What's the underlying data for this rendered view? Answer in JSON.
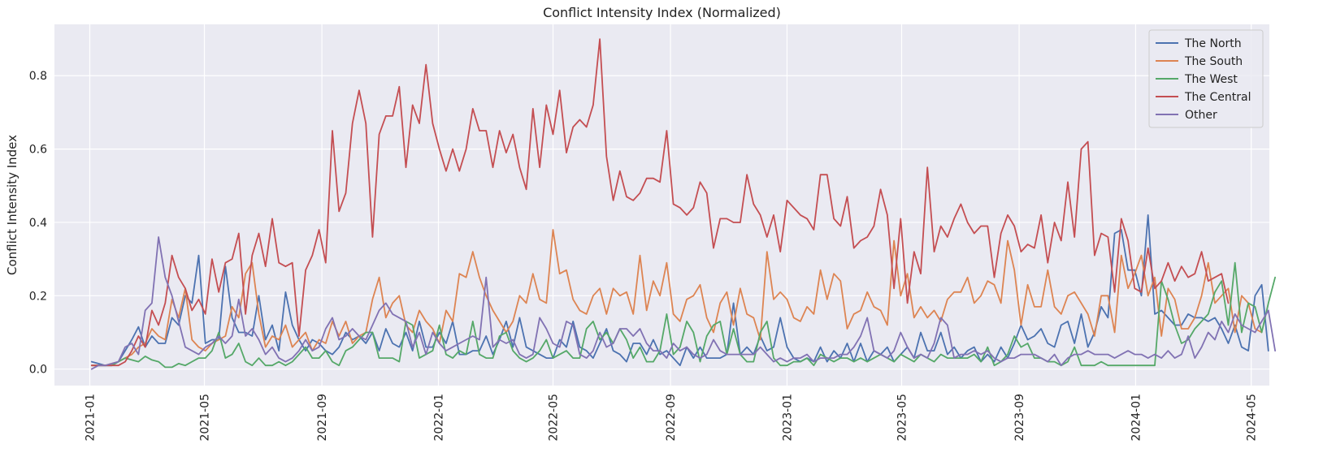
{
  "chart_data": {
    "type": "line",
    "title": "Conflict Intensity Index (Normalized)",
    "xlabel": "",
    "ylabel": "Conflict Intensity Index",
    "xlim": [
      "2020-11-25",
      "2024-05-20"
    ],
    "ylim": [
      -0.045,
      0.94
    ],
    "x_ticks": [
      "2021-01",
      "2021-05",
      "2021-09",
      "2022-01",
      "2022-05",
      "2022-09",
      "2023-01",
      "2023-05",
      "2023-09",
      "2024-01",
      "2024-05"
    ],
    "y_ticks": [
      "0.0",
      "0.2",
      "0.4",
      "0.6",
      "0.8"
    ],
    "grid": true,
    "legend_position": "top-right",
    "x_start": "2021-01-03",
    "x_step_days": 7,
    "series": [
      {
        "name": "The North",
        "color": "#4c72b0",
        "values": [
          0.02,
          0.015,
          0.01,
          0.01,
          0.02,
          0.05,
          0.08,
          0.115,
          0.06,
          0.09,
          0.07,
          0.07,
          0.14,
          0.12,
          0.2,
          0.18,
          0.31,
          0.07,
          0.08,
          0.08,
          0.28,
          0.14,
          0.1,
          0.1,
          0.09,
          0.2,
          0.08,
          0.12,
          0.05,
          0.21,
          0.12,
          0.08,
          0.05,
          0.08,
          0.07,
          0.05,
          0.04,
          0.06,
          0.1,
          0.08,
          0.09,
          0.07,
          0.1,
          0.05,
          0.11,
          0.07,
          0.06,
          0.1,
          0.05,
          0.13,
          0.06,
          0.06,
          0.1,
          0.07,
          0.13,
          0.04,
          0.04,
          0.05,
          0.05,
          0.09,
          0.04,
          0.08,
          0.13,
          0.06,
          0.14,
          0.06,
          0.05,
          0.04,
          0.03,
          0.03,
          0.08,
          0.06,
          0.13,
          0.06,
          0.05,
          0.03,
          0.07,
          0.11,
          0.05,
          0.04,
          0.02,
          0.07,
          0.07,
          0.04,
          0.08,
          0.04,
          0.05,
          0.03,
          0.01,
          0.06,
          0.03,
          0.06,
          0.03,
          0.03,
          0.03,
          0.04,
          0.18,
          0.04,
          0.06,
          0.04,
          0.09,
          0.05,
          0.06,
          0.14,
          0.06,
          0.03,
          0.02,
          0.03,
          0.02,
          0.06,
          0.02,
          0.05,
          0.03,
          0.07,
          0.02,
          0.07,
          0.02,
          0.05,
          0.04,
          0.06,
          0.02,
          0.04,
          0.06,
          0.03,
          0.1,
          0.05,
          0.05,
          0.1,
          0.04,
          0.06,
          0.03,
          0.05,
          0.06,
          0.02,
          0.04,
          0.02,
          0.06,
          0.03,
          0.07,
          0.12,
          0.08,
          0.09,
          0.11,
          0.07,
          0.06,
          0.12,
          0.13,
          0.07,
          0.15,
          0.06,
          0.1,
          0.17,
          0.14,
          0.37,
          0.38,
          0.27,
          0.27,
          0.2,
          0.42,
          0.15,
          0.16,
          0.14,
          0.12,
          0.12,
          0.15,
          0.14,
          0.14,
          0.13,
          0.14,
          0.11,
          0.07,
          0.12,
          0.06,
          0.05,
          0.2,
          0.23,
          0.05
        ]
      },
      {
        "name": "The South",
        "color": "#dd8452",
        "values": [
          0.01,
          0.01,
          0.01,
          0.015,
          0.02,
          0.03,
          0.04,
          0.06,
          0.07,
          0.11,
          0.09,
          0.08,
          0.19,
          0.14,
          0.22,
          0.08,
          0.06,
          0.05,
          0.07,
          0.08,
          0.09,
          0.17,
          0.14,
          0.26,
          0.29,
          0.15,
          0.06,
          0.09,
          0.08,
          0.12,
          0.06,
          0.08,
          0.1,
          0.05,
          0.08,
          0.07,
          0.13,
          0.09,
          0.13,
          0.07,
          0.09,
          0.1,
          0.19,
          0.25,
          0.14,
          0.18,
          0.2,
          0.12,
          0.1,
          0.16,
          0.13,
          0.11,
          0.07,
          0.16,
          0.13,
          0.26,
          0.25,
          0.32,
          0.25,
          0.2,
          0.16,
          0.13,
          0.1,
          0.13,
          0.2,
          0.18,
          0.26,
          0.19,
          0.18,
          0.38,
          0.26,
          0.27,
          0.19,
          0.16,
          0.15,
          0.2,
          0.22,
          0.15,
          0.22,
          0.2,
          0.21,
          0.15,
          0.31,
          0.16,
          0.24,
          0.2,
          0.29,
          0.15,
          0.13,
          0.19,
          0.2,
          0.23,
          0.14,
          0.1,
          0.18,
          0.21,
          0.12,
          0.22,
          0.15,
          0.14,
          0.08,
          0.32,
          0.19,
          0.21,
          0.19,
          0.14,
          0.13,
          0.17,
          0.15,
          0.27,
          0.19,
          0.26,
          0.24,
          0.11,
          0.15,
          0.16,
          0.21,
          0.17,
          0.16,
          0.12,
          0.35,
          0.2,
          0.26,
          0.14,
          0.17,
          0.14,
          0.16,
          0.13,
          0.19,
          0.21,
          0.21,
          0.25,
          0.18,
          0.2,
          0.24,
          0.23,
          0.18,
          0.35,
          0.27,
          0.12,
          0.23,
          0.17,
          0.17,
          0.27,
          0.17,
          0.15,
          0.2,
          0.21,
          0.18,
          0.15,
          0.09,
          0.2,
          0.2,
          0.1,
          0.31,
          0.22,
          0.26,
          0.31,
          0.2,
          0.25,
          0.09,
          0.22,
          0.19,
          0.11,
          0.11,
          0.14,
          0.2,
          0.29,
          0.18,
          0.2,
          0.22,
          0.1,
          0.2,
          0.18,
          0.11,
          0.1
        ]
      },
      {
        "name": "The West",
        "color": "#55a868",
        "values": [
          0.01,
          0.01,
          0.01,
          0.01,
          0.02,
          0.03,
          0.025,
          0.02,
          0.035,
          0.025,
          0.02,
          0.005,
          0.005,
          0.015,
          0.01,
          0.02,
          0.03,
          0.03,
          0.05,
          0.1,
          0.03,
          0.04,
          0.07,
          0.02,
          0.01,
          0.03,
          0.01,
          0.01,
          0.02,
          0.01,
          0.02,
          0.04,
          0.06,
          0.03,
          0.03,
          0.05,
          0.02,
          0.01,
          0.05,
          0.06,
          0.08,
          0.1,
          0.1,
          0.03,
          0.03,
          0.03,
          0.02,
          0.13,
          0.12,
          0.03,
          0.04,
          0.05,
          0.12,
          0.04,
          0.03,
          0.05,
          0.04,
          0.13,
          0.04,
          0.03,
          0.03,
          0.09,
          0.1,
          0.05,
          0.03,
          0.02,
          0.03,
          0.05,
          0.08,
          0.03,
          0.04,
          0.05,
          0.03,
          0.03,
          0.11,
          0.13,
          0.08,
          0.1,
          0.07,
          0.11,
          0.08,
          0.03,
          0.06,
          0.02,
          0.02,
          0.05,
          0.15,
          0.04,
          0.06,
          0.13,
          0.1,
          0.02,
          0.09,
          0.12,
          0.13,
          0.04,
          0.11,
          0.04,
          0.02,
          0.02,
          0.1,
          0.13,
          0.03,
          0.01,
          0.01,
          0.02,
          0.02,
          0.03,
          0.01,
          0.04,
          0.03,
          0.02,
          0.03,
          0.03,
          0.02,
          0.03,
          0.02,
          0.03,
          0.04,
          0.03,
          0.02,
          0.04,
          0.03,
          0.02,
          0.04,
          0.03,
          0.02,
          0.04,
          0.03,
          0.03,
          0.03,
          0.03,
          0.04,
          0.02,
          0.06,
          0.01,
          0.02,
          0.04,
          0.09,
          0.06,
          0.07,
          0.03,
          0.03,
          0.02,
          0.02,
          0.01,
          0.02,
          0.06,
          0.01,
          0.01,
          0.01,
          0.02,
          0.01,
          0.01,
          0.01,
          0.01,
          0.01,
          0.01,
          0.01,
          0.01,
          0.24,
          0.19,
          0.12,
          0.07,
          0.08,
          0.11,
          0.13,
          0.15,
          0.21,
          0.24,
          0.12,
          0.29,
          0.1,
          0.18,
          0.17,
          0.1,
          0.18,
          0.25
        ]
      },
      {
        "name": "The Central",
        "color": "#c44e52",
        "values": [
          0.01,
          0.01,
          0.01,
          0.01,
          0.01,
          0.02,
          0.05,
          0.09,
          0.06,
          0.16,
          0.12,
          0.18,
          0.31,
          0.25,
          0.22,
          0.16,
          0.19,
          0.15,
          0.3,
          0.21,
          0.29,
          0.3,
          0.37,
          0.15,
          0.31,
          0.37,
          0.28,
          0.41,
          0.29,
          0.28,
          0.29,
          0.09,
          0.27,
          0.31,
          0.38,
          0.29,
          0.65,
          0.43,
          0.48,
          0.67,
          0.76,
          0.67,
          0.36,
          0.64,
          0.69,
          0.69,
          0.77,
          0.55,
          0.72,
          0.67,
          0.83,
          0.67,
          0.6,
          0.54,
          0.6,
          0.54,
          0.6,
          0.71,
          0.65,
          0.65,
          0.55,
          0.65,
          0.59,
          0.64,
          0.55,
          0.49,
          0.71,
          0.55,
          0.72,
          0.64,
          0.76,
          0.59,
          0.66,
          0.68,
          0.66,
          0.72,
          0.9,
          0.58,
          0.46,
          0.54,
          0.47,
          0.46,
          0.48,
          0.52,
          0.52,
          0.51,
          0.65,
          0.45,
          0.44,
          0.42,
          0.44,
          0.51,
          0.48,
          0.33,
          0.41,
          0.41,
          0.4,
          0.4,
          0.53,
          0.45,
          0.42,
          0.36,
          0.42,
          0.32,
          0.46,
          0.44,
          0.42,
          0.41,
          0.38,
          0.53,
          0.53,
          0.41,
          0.39,
          0.47,
          0.33,
          0.35,
          0.36,
          0.39,
          0.49,
          0.42,
          0.22,
          0.41,
          0.18,
          0.32,
          0.26,
          0.55,
          0.32,
          0.39,
          0.36,
          0.41,
          0.45,
          0.4,
          0.37,
          0.39,
          0.39,
          0.25,
          0.37,
          0.42,
          0.39,
          0.32,
          0.34,
          0.33,
          0.42,
          0.29,
          0.4,
          0.35,
          0.51,
          0.36,
          0.6,
          0.62,
          0.31,
          0.37,
          0.36,
          0.21,
          0.41,
          0.35,
          0.22,
          0.21,
          0.33,
          0.22,
          0.24,
          0.29,
          0.24,
          0.28,
          0.25,
          0.26,
          0.32,
          0.24,
          0.25,
          0.26,
          0.18
        ]
      },
      {
        "name": "Other",
        "color": "#8172b3",
        "values": [
          0.0,
          0.01,
          0.01,
          0.015,
          0.02,
          0.06,
          0.07,
          0.04,
          0.16,
          0.18,
          0.36,
          0.25,
          0.2,
          0.13,
          0.06,
          0.05,
          0.04,
          0.06,
          0.07,
          0.09,
          0.07,
          0.09,
          0.19,
          0.09,
          0.11,
          0.08,
          0.04,
          0.06,
          0.03,
          0.02,
          0.03,
          0.05,
          0.08,
          0.05,
          0.06,
          0.11,
          0.14,
          0.08,
          0.09,
          0.11,
          0.09,
          0.08,
          0.12,
          0.16,
          0.18,
          0.15,
          0.14,
          0.13,
          0.06,
          0.1,
          0.04,
          0.1,
          0.07,
          0.05,
          0.06,
          0.07,
          0.08,
          0.09,
          0.08,
          0.25,
          0.06,
          0.08,
          0.07,
          0.08,
          0.04,
          0.03,
          0.04,
          0.14,
          0.11,
          0.07,
          0.06,
          0.13,
          0.12,
          0.04,
          0.03,
          0.05,
          0.1,
          0.06,
          0.07,
          0.11,
          0.11,
          0.09,
          0.11,
          0.07,
          0.05,
          0.05,
          0.03,
          0.07,
          0.05,
          0.06,
          0.04,
          0.03,
          0.04,
          0.08,
          0.05,
          0.04,
          0.04,
          0.04,
          0.04,
          0.04,
          0.06,
          0.04,
          0.02,
          0.03,
          0.02,
          0.03,
          0.03,
          0.04,
          0.02,
          0.03,
          0.03,
          0.03,
          0.04,
          0.04,
          0.06,
          0.09,
          0.14,
          0.05,
          0.04,
          0.03,
          0.05,
          0.1,
          0.06,
          0.03,
          0.04,
          0.03,
          0.07,
          0.14,
          0.12,
          0.03,
          0.04,
          0.04,
          0.05,
          0.04,
          0.05,
          0.03,
          0.02,
          0.03,
          0.03,
          0.04,
          0.04,
          0.04,
          0.03,
          0.02,
          0.04,
          0.01,
          0.03,
          0.04,
          0.04,
          0.05,
          0.04,
          0.04,
          0.04,
          0.03,
          0.04,
          0.05,
          0.04,
          0.04,
          0.03,
          0.04,
          0.03,
          0.05,
          0.03,
          0.04,
          0.09,
          0.03,
          0.06,
          0.1,
          0.08,
          0.13,
          0.1,
          0.15,
          0.12,
          0.11,
          0.1,
          0.13,
          0.16,
          0.05
        ]
      }
    ]
  }
}
